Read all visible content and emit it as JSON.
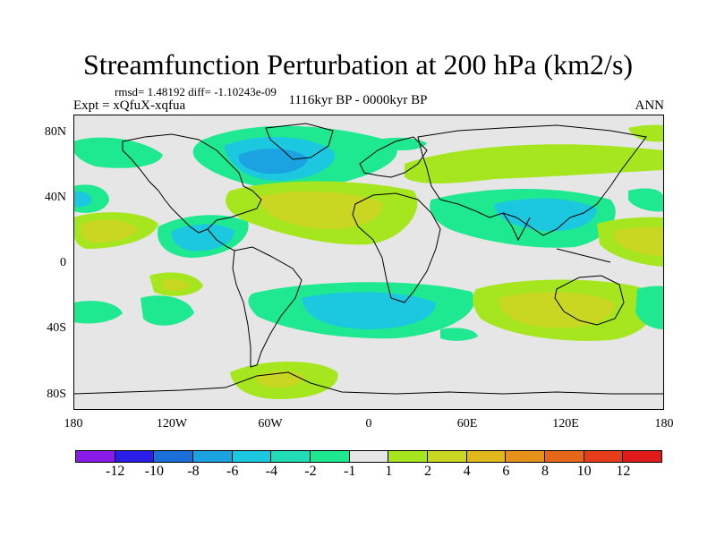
{
  "title": "Streamfunction Perturbation at 200 hPa (km2/s)",
  "stats": "rmsd= 1.48192 diff= -1.10243e-09",
  "experiment": "Expt = xQfuX-xqfua",
  "period": "1116kyr BP - 0000kyr BP",
  "season": "ANN",
  "map": {
    "projection": "cylindrical equidistant",
    "lat_labels": [
      "80N",
      "40N",
      "0",
      "40S",
      "80S"
    ],
    "lon_labels": [
      "180",
      "120W",
      "60W",
      "0",
      "60E",
      "120E",
      "180"
    ],
    "lat_range": [
      -90,
      90
    ],
    "lon_range": [
      -180,
      180
    ]
  },
  "colorbar": {
    "labels": [
      "-12",
      "-10",
      "-8",
      "-6",
      "-4",
      "-2",
      "-1",
      "1",
      "2",
      "4",
      "6",
      "8",
      "10",
      "12"
    ],
    "colors": [
      "#8b1be8",
      "#2b1ee8",
      "#1a6fd8",
      "#1aa3e0",
      "#1cc8e0",
      "#22dcb8",
      "#1ee890",
      "#e6e6e6",
      "#a6e61e",
      "#c9d622",
      "#e0b81c",
      "#e6921a",
      "#e6661a",
      "#e63c1a",
      "#e01a1a"
    ]
  },
  "chart_data": {
    "type": "heatmap",
    "title": "Streamfunction Perturbation at 200 hPa (km2/s)",
    "variable": "streamfunction perturbation",
    "units": "km2/s",
    "levels": [
      -12,
      -10,
      -8,
      -6,
      -4,
      -2,
      -1,
      1,
      2,
      4,
      6,
      8,
      10,
      12
    ],
    "x_range": [
      -180,
      180
    ],
    "y_range": [
      -90,
      90
    ],
    "features": [
      {
        "region": "North Atlantic / Greenland",
        "lon": -65,
        "lat": 62,
        "value": -6
      },
      {
        "region": "Northeast Pacific",
        "lon": -150,
        "lat": 62,
        "value": -2
      },
      {
        "region": "Central N Pacific",
        "lon": -180,
        "lat": 40,
        "value": -4
      },
      {
        "region": "Subtropical E Pacific",
        "lon": -160,
        "lat": 18,
        "value": 4
      },
      {
        "region": "Tropical E Pacific",
        "lon": -105,
        "lat": 14,
        "value": -4
      },
      {
        "region": "N Atlantic mid-lat",
        "lon": -40,
        "lat": 32,
        "value": 4
      },
      {
        "region": "Eurasia mid-lat",
        "lon": 55,
        "lat": 55,
        "value": 2
      },
      {
        "region": "Asia subtropics",
        "lon": 100,
        "lat": 30,
        "value": -4
      },
      {
        "region": "W Pacific subtropics",
        "lon": 160,
        "lat": 20,
        "value": 4
      },
      {
        "region": "S Atlantic",
        "lon": 0,
        "lat": -35,
        "value": -4
      },
      {
        "region": "Indian Ocean / Australia",
        "lon": 85,
        "lat": -38,
        "value": 4
      },
      {
        "region": "SE Pacific",
        "lon": -120,
        "lat": -20,
        "value": 2
      },
      {
        "region": "Antarctic Peninsula",
        "lon": -55,
        "lat": -75,
        "value": 2
      }
    ]
  }
}
